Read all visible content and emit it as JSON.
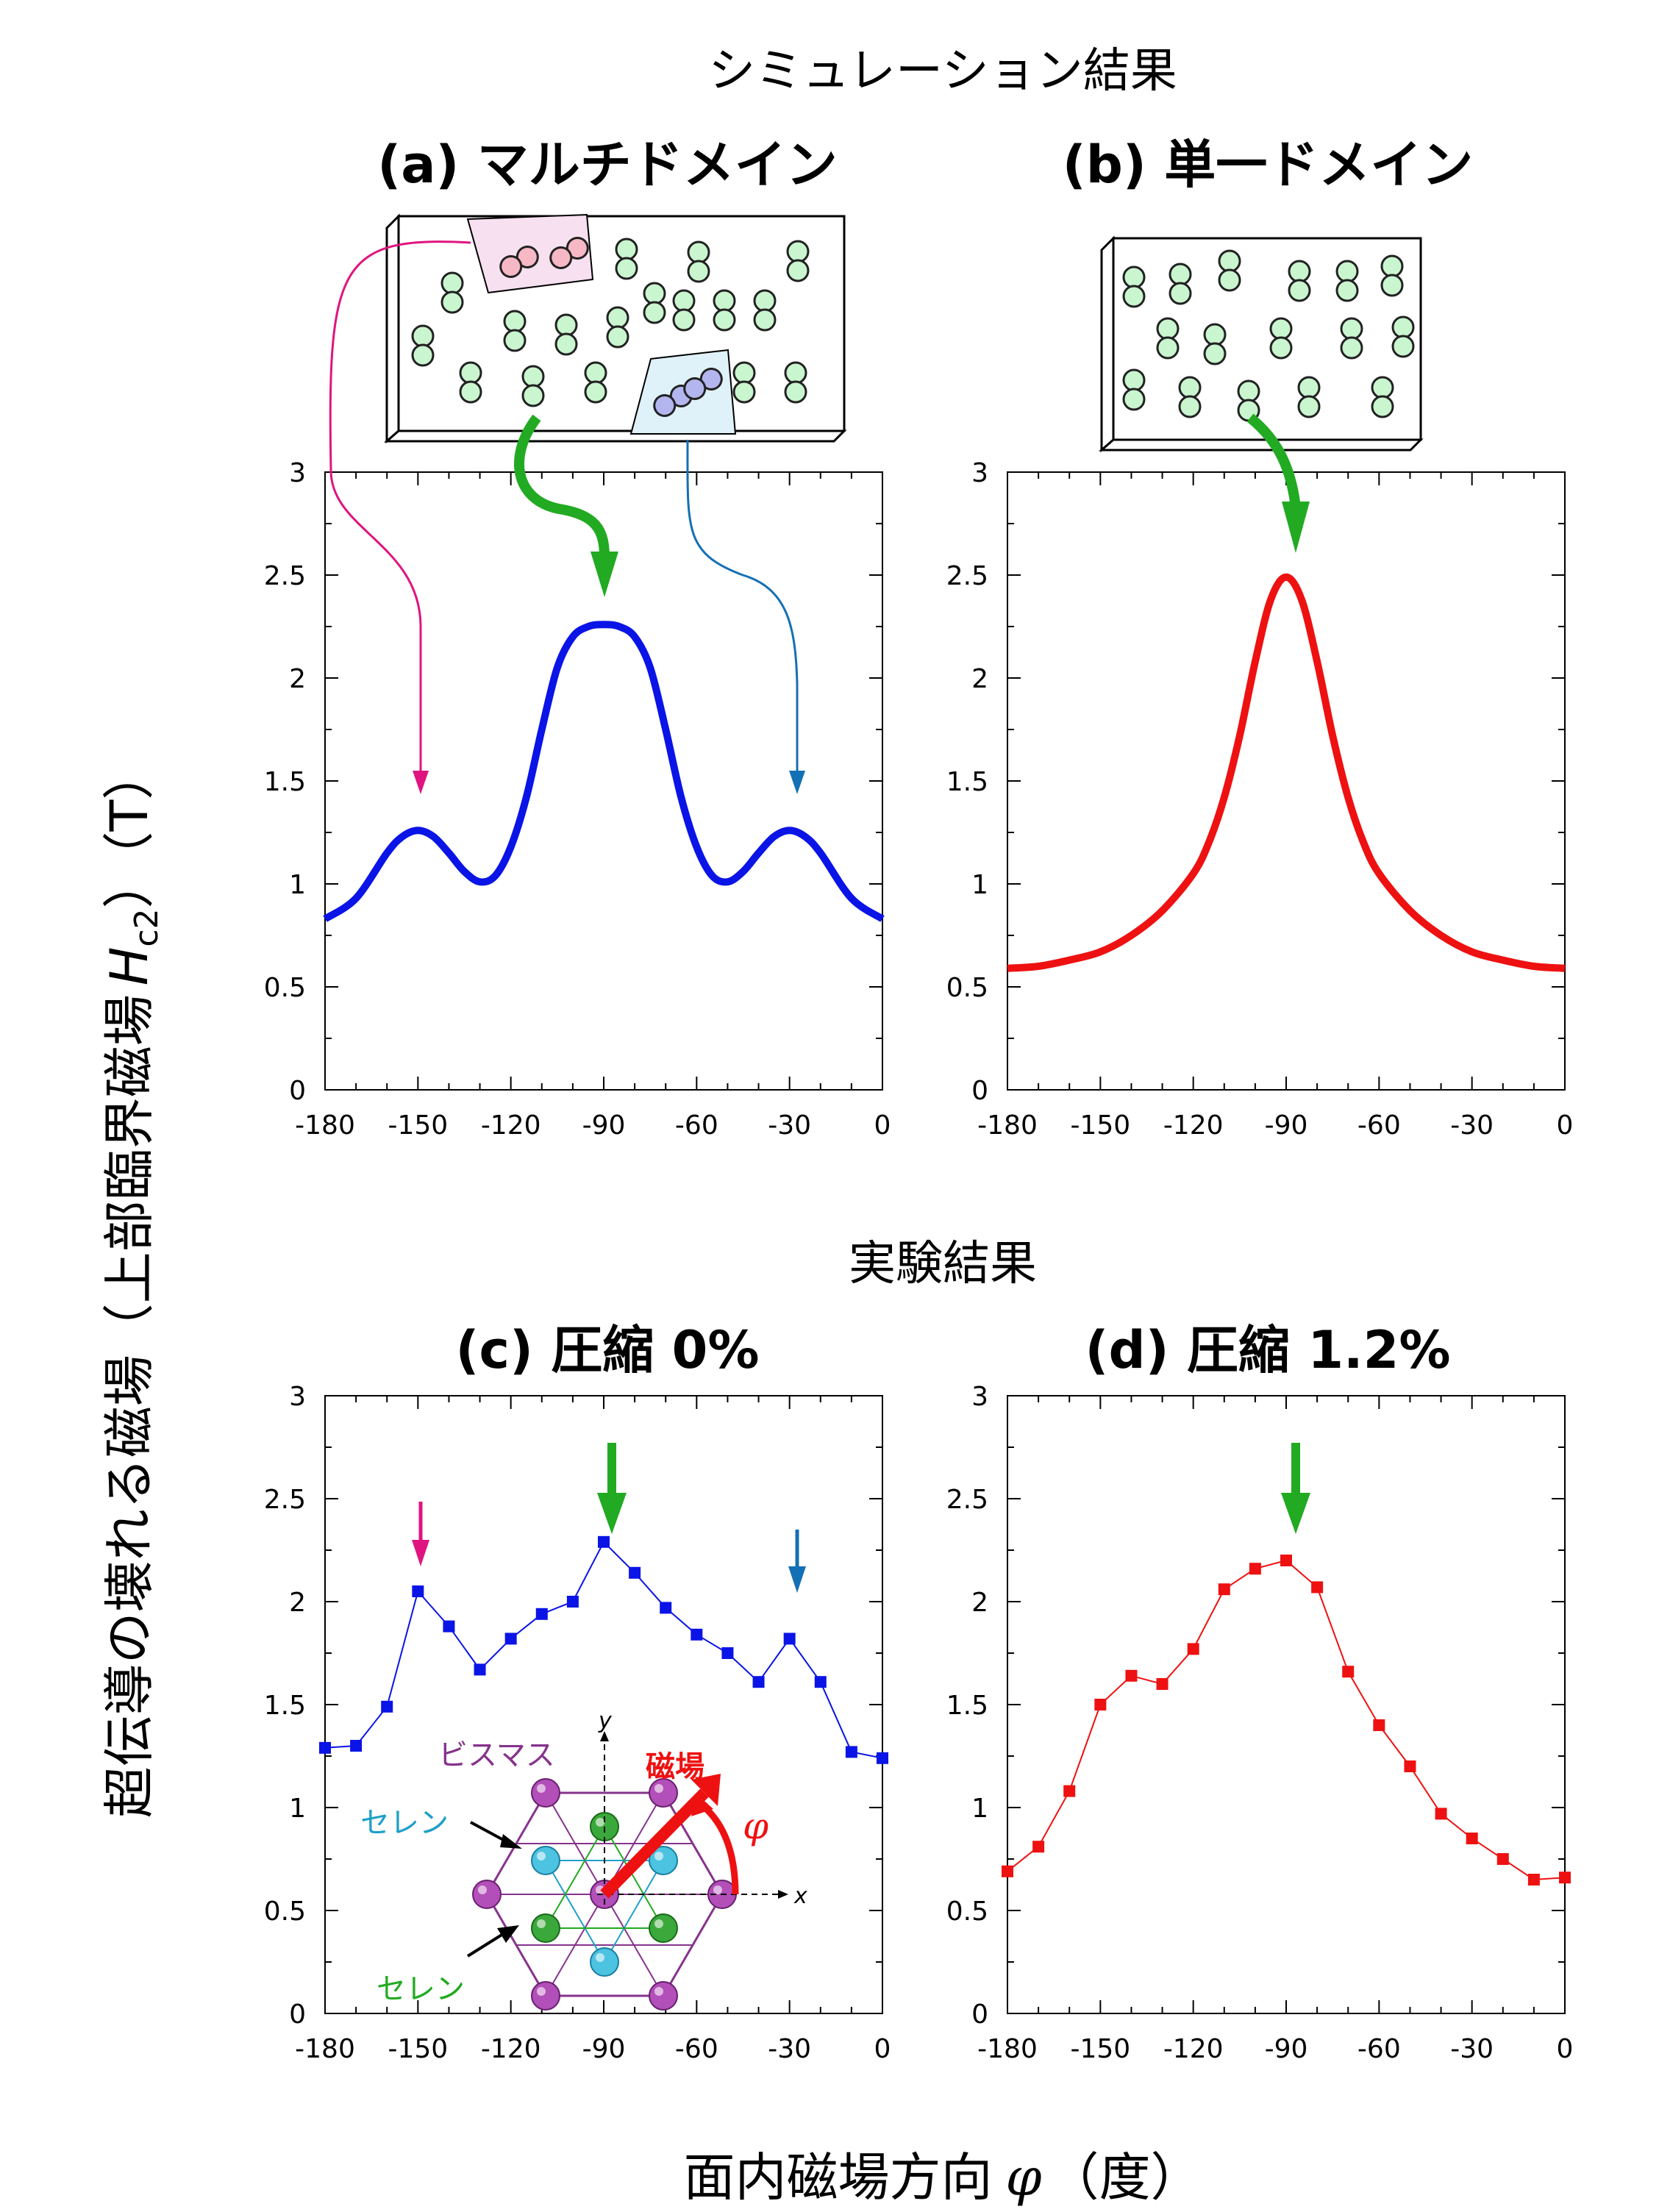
{
  "headings": {
    "simulation": "シミュレーション結果",
    "experiment": "実験結果"
  },
  "axis_labels": {
    "y_main": "超伝導の壊れる磁場（上部臨界磁場",
    "y_symbol": "H",
    "y_subscript": "c2",
    "y_unit": "）（T）",
    "x_main": "面内磁場方向",
    "x_symbol": "φ",
    "x_unit": "（度）"
  },
  "inset": {
    "bismuth_label": "ビスマス",
    "selenium_label_1": "セレン",
    "selenium_label_2": "セレン",
    "field_label": "磁場",
    "phi_label": "φ",
    "x_axis": "x",
    "y_axis": "y"
  },
  "colors": {
    "blue": "#0a14e6",
    "red": "#ee1111",
    "magenta": "#e0147f",
    "green": "#22aa22",
    "steel_blue": "#1470b4",
    "purple": "#86338c",
    "cyan": "#1ea0c8"
  },
  "chart_data": [
    {
      "id": "a",
      "title": "(a) マルチドメイン",
      "type": "line",
      "xlim": [
        -180,
        0
      ],
      "ylim": [
        0,
        3
      ],
      "xticks": [
        -180,
        -150,
        -120,
        -90,
        -60,
        -30,
        0
      ],
      "yticks": [
        0,
        0.5,
        1,
        1.5,
        2,
        2.5,
        3
      ],
      "series": [
        {
          "color": "#0a14e6",
          "x": [
            -180,
            -170,
            -160,
            -155,
            -150,
            -145,
            -140,
            -135,
            -130,
            -125,
            -120,
            -115,
            -110,
            -105,
            -100,
            -95,
            -90,
            -85,
            -80,
            -75,
            -70,
            -65,
            -60,
            -55,
            -50,
            -45,
            -40,
            -35,
            -30,
            -25,
            -20,
            -10,
            0
          ],
          "y": [
            0.83,
            0.93,
            1.15,
            1.23,
            1.26,
            1.23,
            1.15,
            1.06,
            1.01,
            1.04,
            1.18,
            1.42,
            1.75,
            2.05,
            2.2,
            2.25,
            2.26,
            2.25,
            2.2,
            2.05,
            1.75,
            1.42,
            1.18,
            1.04,
            1.01,
            1.06,
            1.15,
            1.23,
            1.26,
            1.23,
            1.15,
            0.93,
            0.83
          ]
        }
      ],
      "annotations": [
        "magenta arrow at -150",
        "green arrow at -90",
        "blue arrow at -30"
      ]
    },
    {
      "id": "b",
      "title": "(b) 単一ドメイン",
      "type": "line",
      "xlim": [
        -180,
        0
      ],
      "ylim": [
        0,
        3
      ],
      "xticks": [
        -180,
        -150,
        -120,
        -90,
        -60,
        -30,
        0
      ],
      "yticks": [
        0,
        0.5,
        1,
        1.5,
        2,
        2.5,
        3
      ],
      "series": [
        {
          "color": "#ee1111",
          "x": [
            -180,
            -170,
            -160,
            -150,
            -140,
            -130,
            -120,
            -115,
            -110,
            -105,
            -100,
            -95,
            -90,
            -85,
            -80,
            -75,
            -70,
            -65,
            -60,
            -50,
            -40,
            -30,
            -20,
            -10,
            0
          ],
          "y": [
            0.59,
            0.6,
            0.63,
            0.67,
            0.75,
            0.87,
            1.05,
            1.2,
            1.42,
            1.72,
            2.08,
            2.38,
            2.49,
            2.38,
            2.08,
            1.72,
            1.42,
            1.2,
            1.05,
            0.87,
            0.75,
            0.67,
            0.63,
            0.6,
            0.59
          ]
        }
      ],
      "annotations": [
        "green arrow at -90"
      ]
    },
    {
      "id": "c",
      "title": "(c) 圧縮 0%",
      "type": "line",
      "xlim": [
        -180,
        0
      ],
      "ylim": [
        0,
        3
      ],
      "xticks": [
        -180,
        -150,
        -120,
        -90,
        -60,
        -30,
        0
      ],
      "yticks": [
        0,
        0.5,
        1,
        1.5,
        2,
        2.5,
        3
      ],
      "series": [
        {
          "color": "#0a14e6",
          "marker": "square",
          "x": [
            -180,
            -170,
            -160,
            -150,
            -140,
            -130,
            -120,
            -110,
            -100,
            -90,
            -80,
            -70,
            -60,
            -50,
            -40,
            -30,
            -20,
            -10,
            0
          ],
          "y": [
            1.29,
            1.3,
            1.49,
            2.05,
            1.88,
            1.67,
            1.82,
            1.94,
            2.0,
            2.29,
            2.14,
            1.97,
            1.84,
            1.75,
            1.61,
            1.82,
            1.61,
            1.27,
            1.24
          ]
        }
      ],
      "annotations": [
        "magenta arrow at -150",
        "green arrow at -90",
        "blue arrow at -30"
      ]
    },
    {
      "id": "d",
      "title": "(d) 圧縮 1.2%",
      "type": "line",
      "xlim": [
        -180,
        0
      ],
      "ylim": [
        0,
        3
      ],
      "xticks": [
        -180,
        -150,
        -120,
        -90,
        -60,
        -30,
        0
      ],
      "yticks": [
        0,
        0.5,
        1,
        1.5,
        2,
        2.5,
        3
      ],
      "series": [
        {
          "color": "#ee1111",
          "marker": "square",
          "x": [
            -180,
            -170,
            -160,
            -150,
            -140,
            -130,
            -120,
            -110,
            -100,
            -90,
            -80,
            -70,
            -60,
            -50,
            -40,
            -30,
            -20,
            -10,
            0
          ],
          "y": [
            0.69,
            0.81,
            1.08,
            1.5,
            1.64,
            1.6,
            1.77,
            2.06,
            2.16,
            2.2,
            2.07,
            1.66,
            1.4,
            1.2,
            0.97,
            0.85,
            0.75,
            0.65,
            0.66
          ]
        }
      ],
      "annotations": [
        "green arrow at -90"
      ]
    }
  ]
}
